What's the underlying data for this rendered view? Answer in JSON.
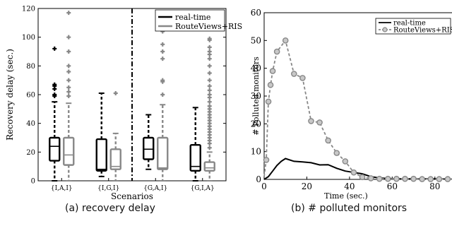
{
  "captions": {
    "a": "(a) recovery delay",
    "b": "(b) # polluted monitors"
  },
  "chart_data": [
    {
      "type": "boxplot",
      "xlabel": "Scenarios",
      "ylabel": "Recovery delay (sec.)",
      "ylim": [
        0,
        120
      ],
      "yticks": [
        0,
        20,
        40,
        60,
        80,
        100,
        120
      ],
      "categories": [
        "{I,A,I}",
        "{I,G,I}",
        "{G,A,I}",
        "{G,I,A}"
      ],
      "divider_after": 1,
      "legend_position": "top-right",
      "series": [
        {
          "name": "real-time",
          "color": "#000000",
          "boxes": [
            {
              "whisker_low": 0,
              "q1": 14,
              "median": 24,
              "q3": 30,
              "whisker_high": 55,
              "outliers": [
                59,
                60,
                64,
                66,
                67,
                92
              ]
            },
            {
              "whisker_low": 3,
              "q1": 7,
              "median": 8,
              "q3": 29,
              "whisker_high": 61,
              "outliers": []
            },
            {
              "whisker_low": 8,
              "q1": 15,
              "median": 22,
              "q3": 30,
              "whisker_high": 46,
              "outliers": []
            },
            {
              "whisker_low": 0,
              "q1": 7,
              "median": 10,
              "q3": 25,
              "whisker_high": 51,
              "outliers": []
            }
          ]
        },
        {
          "name": "RouteViews+RIS",
          "color": "#888888",
          "boxes": [
            {
              "whisker_low": 0,
              "q1": 11,
              "median": 18,
              "q3": 30,
              "whisker_high": 54,
              "outliers": [
                59,
                62,
                65,
                70,
                76,
                80,
                90,
                100,
                117
              ]
            },
            {
              "whisker_low": 0,
              "q1": 8,
              "median": 10,
              "q3": 22,
              "whisker_high": 33,
              "outliers": [
                61
              ]
            },
            {
              "whisker_low": 0,
              "q1": 8,
              "median": 9,
              "q3": 30,
              "whisker_high": 53,
              "outliers": [
                60,
                69,
                70,
                85,
                90,
                95,
                104
              ]
            },
            {
              "whisker_low": 0,
              "q1": 7,
              "median": 9,
              "q3": 13,
              "whisker_high": 20,
              "outliers": [
                23,
                26,
                28,
                30,
                32,
                34,
                36,
                38,
                40,
                42,
                44,
                46,
                48,
                50,
                52,
                55,
                58,
                60,
                63,
                66,
                70,
                75,
                80,
                85,
                88,
                90,
                93,
                98,
                99
              ]
            }
          ]
        }
      ]
    },
    {
      "type": "line",
      "xlabel": "Time (sec.)",
      "ylabel": "# Polluted monitors",
      "xlim": [
        0,
        90
      ],
      "ylim": [
        0,
        60
      ],
      "xticks": [
        0,
        20,
        40,
        60,
        80
      ],
      "yticks": [
        0,
        10,
        20,
        30,
        40,
        50,
        60
      ],
      "legend_position": "top-right",
      "series": [
        {
          "name": "real-time",
          "color": "#000000",
          "x": [
            0,
            2,
            4,
            6,
            8,
            10,
            14,
            18,
            22,
            26,
            30,
            34,
            38,
            42,
            46,
            50,
            54,
            58,
            62,
            66,
            70,
            74,
            78,
            82,
            86,
            90
          ],
          "y": [
            0,
            1,
            3,
            5,
            6.5,
            7.5,
            6.5,
            6.3,
            6,
            5.2,
            5.3,
            4,
            3,
            2.5,
            2,
            1,
            0.5,
            0.3,
            0.2,
            0.2,
            0.2,
            0.2,
            0.2,
            0.2,
            0.1,
            0.1
          ]
        },
        {
          "name": "RouteViews+RIS",
          "color": "#888888",
          "x": [
            0,
            1,
            2,
            3,
            4,
            6,
            10,
            14,
            18,
            22,
            26,
            30,
            34,
            38,
            42,
            46,
            50,
            54,
            58,
            62,
            66,
            70,
            74,
            78,
            82,
            86,
            90
          ],
          "y": [
            1,
            7,
            28,
            34,
            39,
            46,
            50,
            38,
            36.5,
            21,
            20.5,
            14,
            9.5,
            6.5,
            2.5,
            0.8,
            0.4,
            0.2,
            0.2,
            0.2,
            0.2,
            0.2,
            0.1,
            0.1,
            0.1,
            0.1,
            0.1
          ]
        }
      ]
    }
  ]
}
